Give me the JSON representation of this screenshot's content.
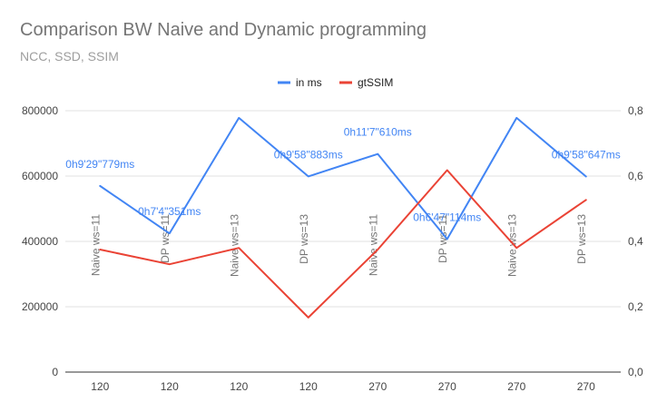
{
  "chart_data": {
    "type": "line",
    "title": "Comparison BW Naive and Dynamic programming",
    "subtitle": "NCC, SSD, SSIM",
    "x_tick_labels": [
      "120",
      "120",
      "120",
      "120",
      "270",
      "270",
      "270",
      "270"
    ],
    "category_labels": [
      "Naive ws=11",
      "DP ws=11",
      "Naive ws=13",
      "DP ws=13",
      "Naive ws=11",
      "DP ws=11",
      "Naive ws=13",
      "DP ws=13"
    ],
    "left_axis": {
      "ylim": [
        0,
        800000
      ],
      "ticks": [
        "0",
        "200000",
        "400000",
        "600000",
        "800000"
      ]
    },
    "right_axis": {
      "ylim": [
        0,
        0.8
      ],
      "ticks": [
        "0,0",
        "0,2",
        "0,4",
        "0,6",
        "0,8"
      ]
    },
    "legend_position": "top",
    "series": [
      {
        "name": "in ms",
        "axis": "left",
        "color": "#4285f4",
        "values": [
          569779,
          424351,
          778000,
          598883,
          667610,
          407114,
          778000,
          598647
        ],
        "data_labels": [
          "0h9'29\"779ms",
          "0h7'4\"351ms",
          "",
          "0h9'58\"883ms",
          "0h11'7\"610ms",
          "0h6'47\"114ms",
          "",
          "0h9'58\"647ms"
        ]
      },
      {
        "name": "gtSSIM",
        "axis": "right",
        "color": "#ea4335",
        "values": [
          0.375,
          0.33,
          0.38,
          0.167,
          0.375,
          0.618,
          0.38,
          0.527
        ]
      }
    ]
  }
}
